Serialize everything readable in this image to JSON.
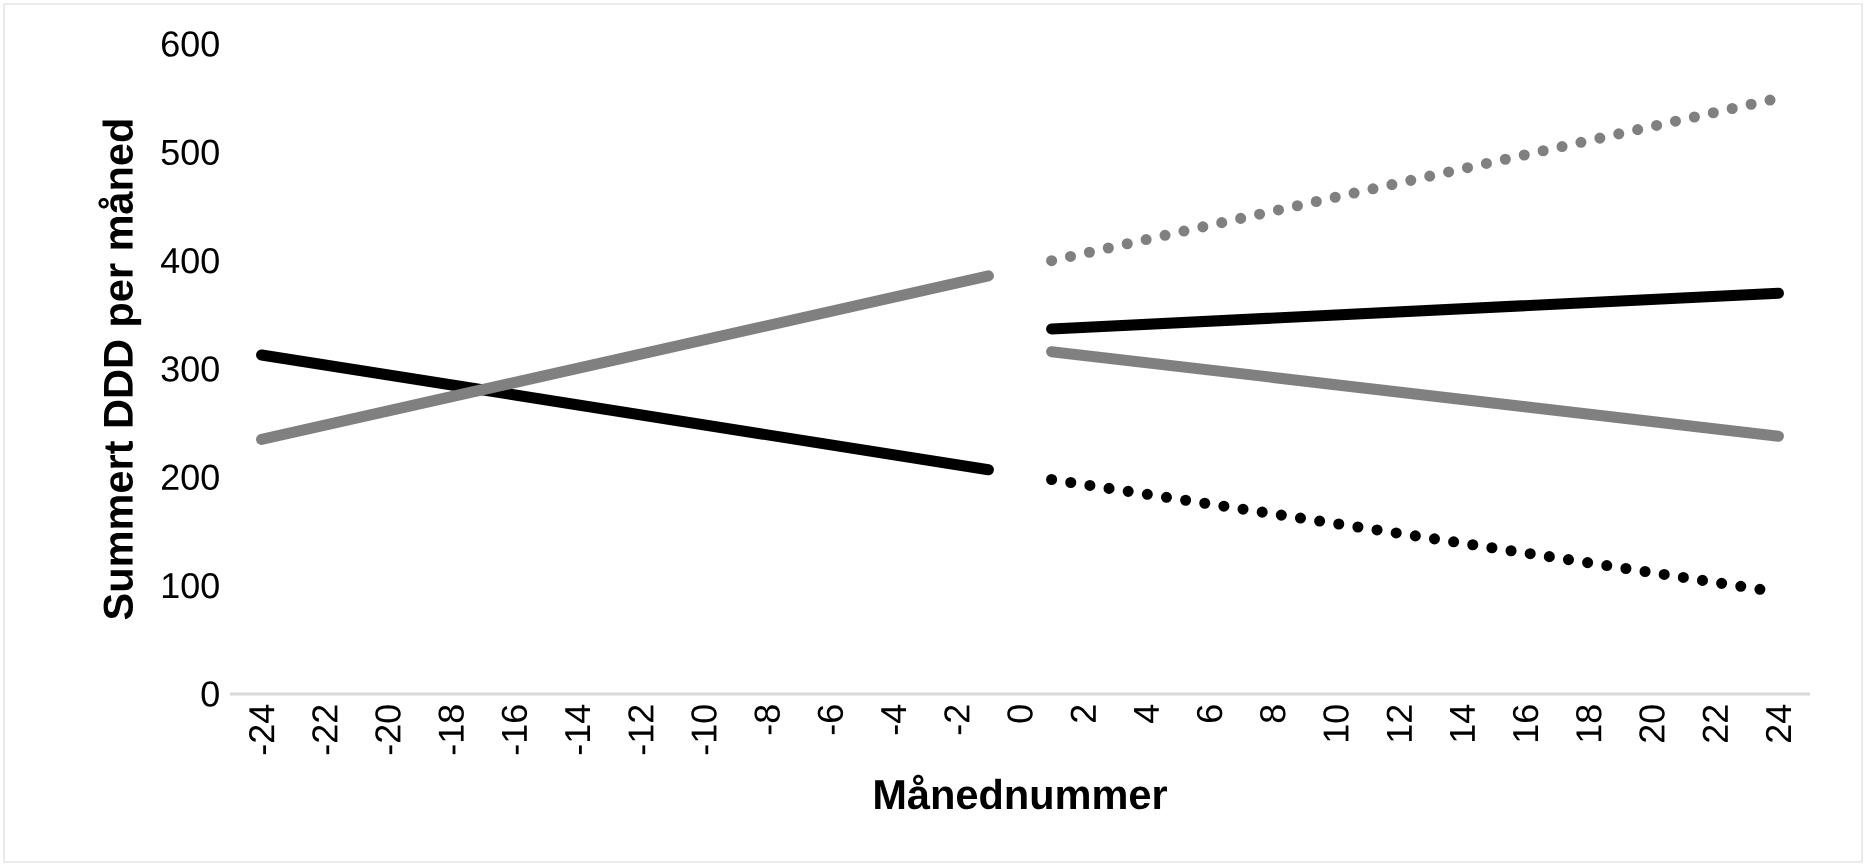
{
  "chart_data": {
    "type": "line",
    "xlabel": "Månednummer",
    "ylabel": "Summert DDD per måned",
    "xlim": [
      -25,
      25
    ],
    "xticks": [
      -24,
      -22,
      -20,
      -18,
      -16,
      -14,
      -12,
      -10,
      -8,
      -6,
      -4,
      -2,
      0,
      2,
      4,
      6,
      8,
      10,
      12,
      14,
      16,
      18,
      20,
      22,
      24
    ],
    "ylim": [
      0,
      600
    ],
    "yticks": [
      0,
      100,
      200,
      300,
      400,
      500,
      600
    ],
    "grid": false,
    "marker": "none",
    "series": [
      {
        "color": "#000000",
        "x": [
          -24,
          -1
        ],
        "values": [
          313,
          207
        ],
        "line_style": "solid"
      },
      {
        "color": "#808080",
        "x": [
          -24,
          -1
        ],
        "values": [
          235,
          386
        ],
        "line_style": "solid"
      },
      {
        "color": "#808080",
        "x": [
          1,
          24
        ],
        "values": [
          400,
          550
        ],
        "line_style": "dotted"
      },
      {
        "color": "#000000",
        "x": [
          1,
          24
        ],
        "values": [
          337,
          370
        ],
        "line_style": "solid"
      },
      {
        "color": "#808080",
        "x": [
          1,
          24
        ],
        "values": [
          316,
          238
        ],
        "line_style": "solid"
      },
      {
        "color": "#000000",
        "x": [
          1,
          24
        ],
        "values": [
          198,
          94
        ],
        "line_style": "dotted"
      }
    ]
  }
}
